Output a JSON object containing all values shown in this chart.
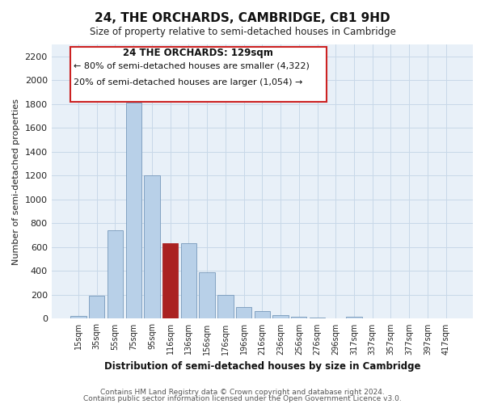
{
  "title": "24, THE ORCHARDS, CAMBRIDGE, CB1 9HD",
  "subtitle": "Size of property relative to semi-detached houses in Cambridge",
  "xlabel": "Distribution of semi-detached houses by size in Cambridge",
  "ylabel": "Number of semi-detached properties",
  "bar_labels": [
    "15sqm",
    "35sqm",
    "55sqm",
    "75sqm",
    "95sqm",
    "116sqm",
    "136sqm",
    "156sqm",
    "176sqm",
    "196sqm",
    "216sqm",
    "236sqm",
    "256sqm",
    "276sqm",
    "296sqm",
    "317sqm",
    "337sqm",
    "357sqm",
    "377sqm",
    "397sqm",
    "417sqm"
  ],
  "bar_values": [
    20,
    190,
    740,
    1810,
    1200,
    630,
    630,
    390,
    200,
    100,
    65,
    30,
    15,
    10,
    5,
    15,
    0,
    0,
    0,
    0,
    0
  ],
  "bar_color_normal": "#b8d0e8",
  "bar_color_highlight": "#aa2222",
  "highlight_index": 5,
  "annotation_title": "24 THE ORCHARDS: 129sqm",
  "annotation_line1": "← 80% of semi-detached houses are smaller (4,322)",
  "annotation_line2": "20% of semi-detached houses are larger (1,054) →",
  "annotation_box_color": "#ffffff",
  "annotation_box_edge": "#cc2222",
  "ylim": [
    0,
    2300
  ],
  "yticks": [
    0,
    200,
    400,
    600,
    800,
    1000,
    1200,
    1400,
    1600,
    1800,
    2000,
    2200
  ],
  "footer1": "Contains HM Land Registry data © Crown copyright and database right 2024.",
  "footer2": "Contains public sector information licensed under the Open Government Licence v3.0.",
  "bg_color": "#e8f0f8"
}
